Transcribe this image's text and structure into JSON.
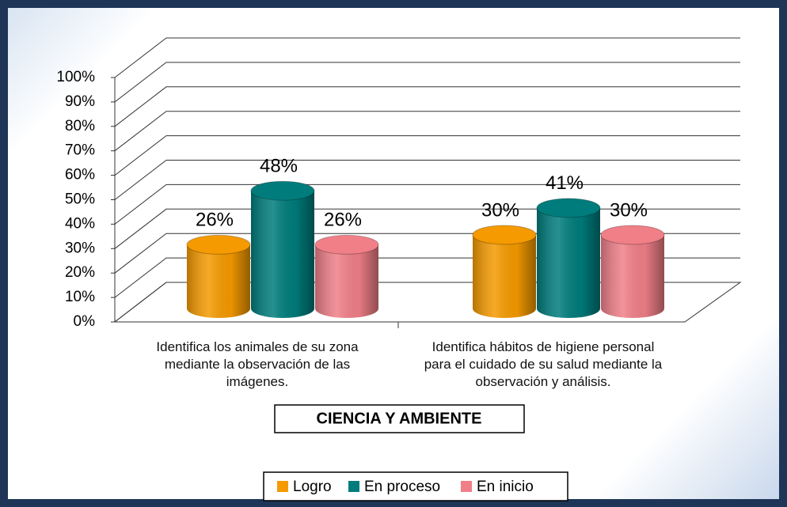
{
  "chart_data": {
    "type": "bar3d",
    "categories": [
      "Identifica los animales de su zona mediante la observación de las imágenes.",
      "Identifica hábitos de higiene personal para el cuidado de su salud mediante la observación y análisis."
    ],
    "x_label": "CIENCIA Y AMBIENTE",
    "series": [
      {
        "name": "Logro",
        "color": "#f59a00",
        "values": [
          26,
          30
        ],
        "value_labels": [
          "26%",
          "30%"
        ]
      },
      {
        "name": "En proceso",
        "color": "#007c7c",
        "values": [
          48,
          41
        ],
        "value_labels": [
          "48%",
          "41%"
        ]
      },
      {
        "name": "En inicio",
        "color": "#f07f88",
        "values": [
          26,
          30
        ],
        "value_labels": [
          "26%",
          "30%"
        ]
      }
    ],
    "ylim": [
      0,
      100
    ],
    "yticks": [
      {
        "value": 0,
        "label": "0%"
      },
      {
        "value": 10,
        "label": "10%"
      },
      {
        "value": 20,
        "label": "20%"
      },
      {
        "value": 30,
        "label": "30%"
      },
      {
        "value": 40,
        "label": "40%"
      },
      {
        "value": 50,
        "label": "50%"
      },
      {
        "value": 60,
        "label": "60%"
      },
      {
        "value": 70,
        "label": "70%"
      },
      {
        "value": 80,
        "label": "80%"
      },
      {
        "value": 90,
        "label": "90%"
      },
      {
        "value": 100,
        "label": "100%"
      }
    ],
    "grid": true,
    "legend": "bottom"
  }
}
